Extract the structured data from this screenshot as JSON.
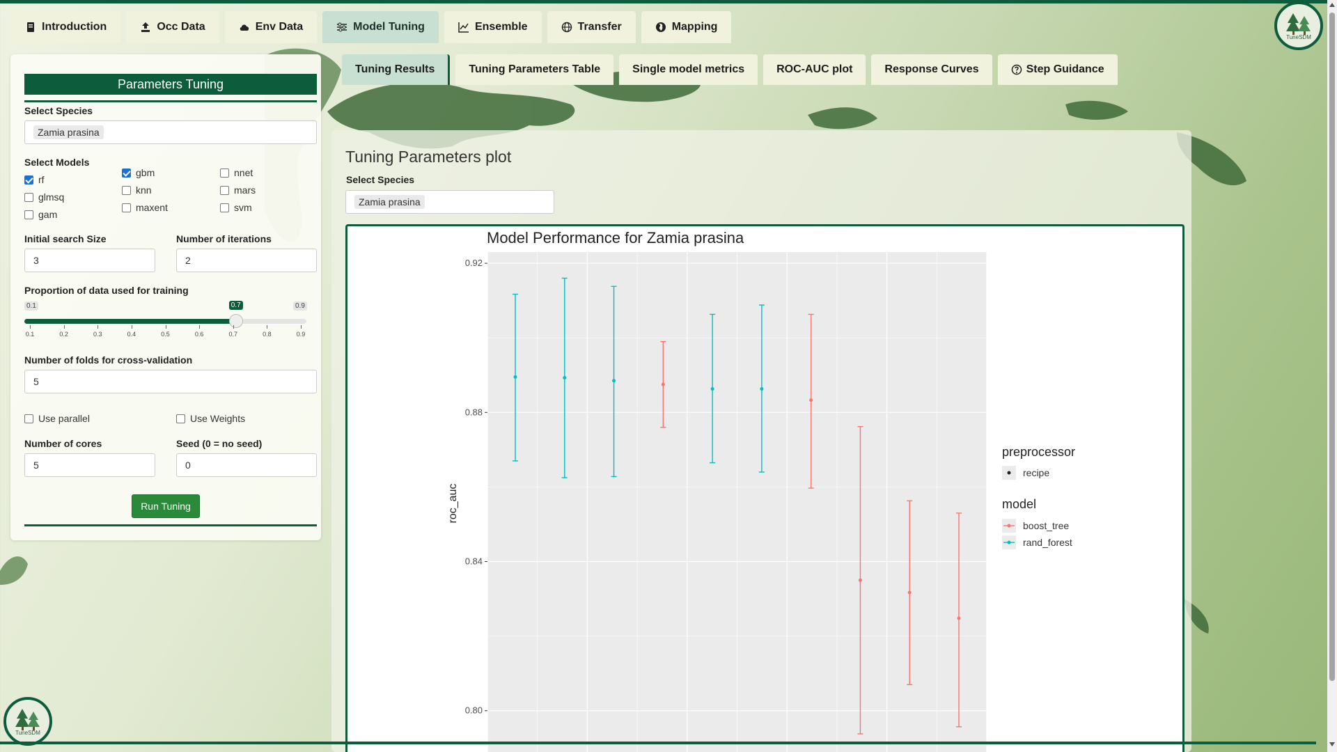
{
  "main_tabs": [
    {
      "label": "Introduction",
      "icon": "book-icon"
    },
    {
      "label": "Occ Data",
      "icon": "upload-icon"
    },
    {
      "label": "Env Data",
      "icon": "cloud-icon"
    },
    {
      "label": "Model Tuning",
      "icon": "sliders-icon",
      "active": true
    },
    {
      "label": "Ensemble",
      "icon": "chart-line-icon"
    },
    {
      "label": "Transfer",
      "icon": "globe-icon"
    },
    {
      "label": "Mapping",
      "icon": "globe-americas-icon"
    }
  ],
  "logo_text": "TuneSDM",
  "params": {
    "header": "Parameters Tuning",
    "species_label": "Select Species",
    "species_value": "Zamia prasina",
    "models_label": "Select Models",
    "models": [
      {
        "label": "rf",
        "checked": true
      },
      {
        "label": "glmsq",
        "checked": false
      },
      {
        "label": "gam",
        "checked": false
      },
      {
        "label": "gbm",
        "checked": true
      },
      {
        "label": "knn",
        "checked": false
      },
      {
        "label": "maxent",
        "checked": false
      },
      {
        "label": "nnet",
        "checked": false
      },
      {
        "label": "mars",
        "checked": false
      },
      {
        "label": "svm",
        "checked": false
      }
    ],
    "init_size_label": "Initial search Size",
    "init_size_value": "3",
    "iterations_label": "Number of iterations",
    "iterations_value": "2",
    "proportion_label": "Proportion of data used for training",
    "slider": {
      "min": 0.1,
      "max": 0.9,
      "value": 0.7,
      "min_label": "0.1",
      "max_label": "0.9",
      "value_label": "0.7",
      "ticks": [
        "0.1",
        "0.2",
        "0.3",
        "0.4",
        "0.5",
        "0.6",
        "0.7",
        "0.8",
        "0.9"
      ]
    },
    "folds_label": "Number of folds for cross-validation",
    "folds_value": "5",
    "parallel_label": "Use parallel",
    "weights_label": "Use Weights",
    "cores_label": "Number of cores",
    "cores_value": "5",
    "seed_label": "Seed (0 = no seed)",
    "seed_value": "0",
    "run_label": "Run Tuning"
  },
  "sub_tabs": [
    {
      "label": "Tuning Results",
      "active": true
    },
    {
      "label": "Tuning Parameters Table"
    },
    {
      "label": "Single model metrics"
    },
    {
      "label": "ROC-AUC plot"
    },
    {
      "label": "Response Curves"
    },
    {
      "label": "Step Guidance",
      "icon": "question-circle-icon"
    }
  ],
  "content": {
    "title": "Tuning Parameters plot",
    "species_label": "Select Species",
    "species_value": "Zamia prasina"
  },
  "colors": {
    "accent": "#0d5c3b",
    "boost_tree": "#F8766D",
    "rand_forest": "#00BFC4"
  },
  "chart_data": {
    "type": "scatter",
    "title": "Model Performance for Zamia prasina",
    "xlabel": "",
    "ylabel": "roc_auc",
    "yticks": [
      0.8,
      0.84,
      0.88,
      0.92
    ],
    "ytick_labels": [
      "0.80",
      "0.84",
      "0.88",
      "0.92"
    ],
    "ylim": [
      0.788,
      0.923
    ],
    "x": [
      1,
      2,
      3,
      4,
      5,
      6,
      7,
      8,
      9,
      10
    ],
    "series": [
      {
        "name": "rand_forest",
        "points": [
          {
            "x": 1,
            "mean": 0.8895,
            "lower": 0.867,
            "upper": 0.9117
          },
          {
            "x": 2,
            "mean": 0.8893,
            "lower": 0.8625,
            "upper": 0.916
          },
          {
            "x": 3,
            "mean": 0.8885,
            "lower": 0.8628,
            "upper": 0.9138
          },
          {
            "x": 5,
            "mean": 0.8863,
            "lower": 0.8665,
            "upper": 0.9063
          },
          {
            "x": 6,
            "mean": 0.8863,
            "lower": 0.864,
            "upper": 0.9088
          }
        ]
      },
      {
        "name": "boost_tree",
        "points": [
          {
            "x": 4,
            "mean": 0.8875,
            "lower": 0.876,
            "upper": 0.899
          },
          {
            "x": 7,
            "mean": 0.8833,
            "lower": 0.8597,
            "upper": 0.9063
          },
          {
            "x": 8,
            "mean": 0.835,
            "lower": 0.7938,
            "upper": 0.8762
          },
          {
            "x": 9,
            "mean": 0.8317,
            "lower": 0.807,
            "upper": 0.8563
          },
          {
            "x": 10,
            "mean": 0.8248,
            "lower": 0.7957,
            "upper": 0.853
          }
        ]
      }
    ],
    "legend": {
      "position": "right",
      "preprocessor_title": "preprocessor",
      "preprocessor_items": [
        "recipe"
      ],
      "model_title": "model",
      "model_items": [
        "boost_tree",
        "rand_forest"
      ]
    }
  }
}
